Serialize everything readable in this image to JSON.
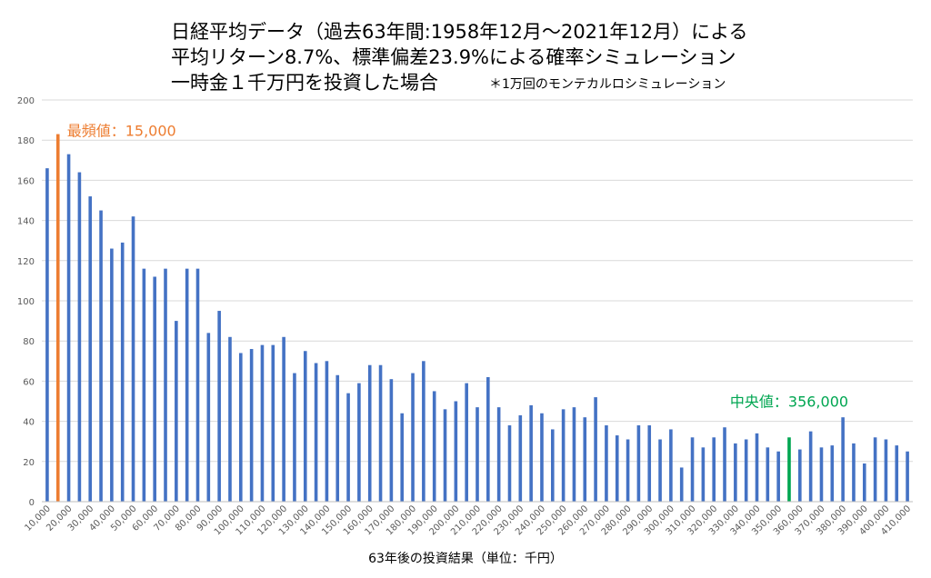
{
  "chart_data": {
    "type": "bar",
    "title_lines": [
      "日経平均データ（過去63年間:1958年12月～2021年12月）による",
      "平均リターン8.7%、標準偏差23.9%による確率シミュレーション",
      "一時金１千万円を投資した場合"
    ],
    "note": "＊1万回のモンテカルロシミュレーション",
    "xlabel": "63年後の投資結果（単位：千円）",
    "ylabel": "",
    "ylim": [
      0,
      200
    ],
    "yticks": [
      0,
      20,
      40,
      60,
      80,
      100,
      120,
      140,
      160,
      180,
      200
    ],
    "grid": true,
    "categories": [
      "10,000",
      "15,000",
      "20,000",
      "25,000",
      "30,000",
      "35,000",
      "40,000",
      "45,000",
      "50,000",
      "55,000",
      "60,000",
      "65,000",
      "70,000",
      "75,000",
      "80,000",
      "85,000",
      "90,000",
      "95,000",
      "100,000",
      "105,000",
      "110,000",
      "115,000",
      "120,000",
      "125,000",
      "130,000",
      "135,000",
      "140,000",
      "145,000",
      "150,000",
      "155,000",
      "160,000",
      "165,000",
      "170,000",
      "175,000",
      "180,000",
      "185,000",
      "190,000",
      "195,000",
      "200,000",
      "205,000",
      "210,000",
      "215,000",
      "220,000",
      "225,000",
      "230,000",
      "235,000",
      "240,000",
      "245,000",
      "250,000",
      "255,000",
      "260,000",
      "265,000",
      "270,000",
      "275,000",
      "280,000",
      "285,000",
      "290,000",
      "295,000",
      "300,000",
      "305,000",
      "310,000",
      "315,000",
      "320,000",
      "325,000",
      "330,000",
      "335,000",
      "340,000",
      "345,000",
      "350,000",
      "355,000",
      "360,000",
      "365,000",
      "370,000",
      "375,000",
      "380,000",
      "385,000",
      "390,000",
      "395,000",
      "400,000",
      "405,000",
      "410,000"
    ],
    "values": [
      166,
      183,
      173,
      164,
      152,
      145,
      126,
      129,
      142,
      116,
      112,
      116,
      90,
      116,
      116,
      84,
      95,
      82,
      74,
      76,
      78,
      78,
      82,
      64,
      75,
      69,
      70,
      63,
      54,
      59,
      68,
      68,
      61,
      44,
      64,
      70,
      55,
      46,
      50,
      59,
      47,
      62,
      47,
      38,
      43,
      48,
      44,
      36,
      46,
      47,
      42,
      52,
      38,
      33,
      31,
      38,
      38,
      31,
      36,
      17,
      32,
      27,
      32,
      37,
      29,
      31,
      34,
      27,
      25,
      32,
      26,
      35,
      27,
      28,
      42,
      29,
      19,
      32,
      31,
      28,
      25
    ],
    "highlights": [
      {
        "index": 1,
        "color": "#ED7D31",
        "label": "最頻値：15,000"
      },
      {
        "index": 69,
        "color": "#00A651",
        "label": "中央値：356,000"
      }
    ],
    "bar_color": "#4472C4",
    "grid_color": "#D9D9D9"
  }
}
